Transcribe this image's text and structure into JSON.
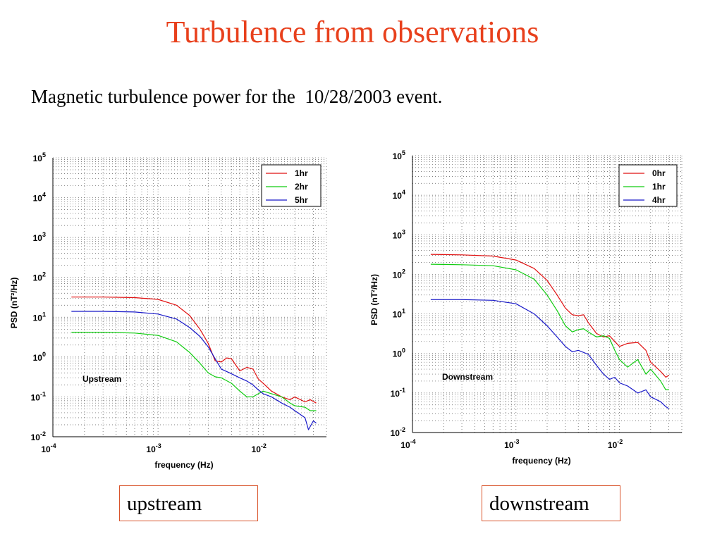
{
  "title": "Turbulence from observations",
  "subtitle": "Magnetic turbulence power for the  10/28/2003 event.",
  "captions": {
    "left": "upstream",
    "right": "downstream"
  },
  "chart_data": [
    {
      "type": "line",
      "xscale": "log",
      "yscale": "log",
      "xlim": [
        0.0001,
        0.04
      ],
      "ylim": [
        0.01,
        100000
      ],
      "xlabel": "frequency (Hz)",
      "ylabel": "PSD (nT²/Hz)",
      "xtick_exps": [
        "-4",
        "-3",
        "-2"
      ],
      "ytick_exps": [
        "5",
        "4",
        "3",
        "2",
        "1",
        "0",
        "-1",
        "-2"
      ],
      "annotation": "Upstream",
      "grid": true,
      "legend_position": "top-right",
      "series": [
        {
          "name": "1hr",
          "color": "#e01010",
          "x": [
            0.00015,
            0.0003,
            0.0006,
            0.001,
            0.0015,
            0.002,
            0.0025,
            0.003,
            0.0035,
            0.004,
            0.0045,
            0.005,
            0.006,
            0.007,
            0.008,
            0.009,
            0.01,
            0.012,
            0.015,
            0.018,
            0.02,
            0.025,
            0.028,
            0.032
          ],
          "y": [
            32,
            32,
            31,
            28,
            20,
            11,
            5,
            2.2,
            0.8,
            0.75,
            0.95,
            0.9,
            0.45,
            0.55,
            0.5,
            0.28,
            0.22,
            0.14,
            0.1,
            0.085,
            0.1,
            0.075,
            0.085,
            0.07
          ]
        },
        {
          "name": "2hr",
          "color": "#10cc10",
          "x": [
            0.00015,
            0.0003,
            0.0006,
            0.001,
            0.0015,
            0.002,
            0.0025,
            0.003,
            0.0035,
            0.004,
            0.005,
            0.006,
            0.007,
            0.008,
            0.009,
            0.01,
            0.012,
            0.015,
            0.018,
            0.02,
            0.025,
            0.028,
            0.032
          ],
          "y": [
            4.2,
            4.2,
            4.0,
            3.5,
            2.4,
            1.3,
            0.7,
            0.4,
            0.32,
            0.3,
            0.22,
            0.14,
            0.1,
            0.1,
            0.12,
            0.14,
            0.12,
            0.1,
            0.07,
            0.06,
            0.055,
            0.045,
            0.045
          ]
        },
        {
          "name": "5hr",
          "color": "#1818c8",
          "x": [
            0.00015,
            0.0003,
            0.0006,
            0.001,
            0.0015,
            0.002,
            0.0025,
            0.003,
            0.0035,
            0.004,
            0.005,
            0.006,
            0.007,
            0.008,
            0.009,
            0.01,
            0.012,
            0.015,
            0.018,
            0.02,
            0.025,
            0.027,
            0.03,
            0.032
          ],
          "y": [
            14,
            14,
            13.5,
            12,
            9,
            5.5,
            3.3,
            1.8,
            0.9,
            0.5,
            0.38,
            0.3,
            0.25,
            0.2,
            0.15,
            0.12,
            0.1,
            0.07,
            0.055,
            0.045,
            0.03,
            0.015,
            0.025,
            0.022
          ]
        }
      ]
    },
    {
      "type": "line",
      "xscale": "log",
      "yscale": "log",
      "xlim": [
        0.0001,
        0.04
      ],
      "ylim": [
        0.01,
        100000
      ],
      "xlabel": "frequency (Hz)",
      "ylabel": "PSD (nT²/Hz)",
      "xtick_exps": [
        "-4",
        "-3",
        "-2"
      ],
      "ytick_exps": [
        "5",
        "4",
        "3",
        "2",
        "1",
        "0",
        "-1",
        "-2"
      ],
      "annotation": "Downstream",
      "grid": true,
      "legend_position": "top-right",
      "series": [
        {
          "name": "0hr",
          "color": "#e01010",
          "x": [
            0.00015,
            0.0003,
            0.0006,
            0.001,
            0.0015,
            0.002,
            0.0025,
            0.003,
            0.0035,
            0.004,
            0.0045,
            0.005,
            0.006,
            0.007,
            0.008,
            0.009,
            0.01,
            0.012,
            0.015,
            0.018,
            0.02,
            0.025,
            0.028,
            0.03
          ],
          "y": [
            320,
            310,
            290,
            230,
            140,
            70,
            30,
            14,
            9.5,
            9,
            9.5,
            6,
            3.2,
            2.6,
            2.8,
            2.0,
            1.5,
            1.8,
            1.9,
            1.2,
            0.6,
            0.35,
            0.25,
            0.28
          ]
        },
        {
          "name": "1hr",
          "color": "#10cc10",
          "x": [
            0.00015,
            0.0003,
            0.0006,
            0.001,
            0.0015,
            0.002,
            0.0025,
            0.003,
            0.0035,
            0.004,
            0.0045,
            0.005,
            0.006,
            0.007,
            0.008,
            0.009,
            0.01,
            0.012,
            0.015,
            0.018,
            0.02,
            0.025,
            0.028,
            0.03
          ],
          "y": [
            180,
            175,
            165,
            130,
            75,
            30,
            12,
            5,
            3.5,
            4,
            4.2,
            3.5,
            2.6,
            2.8,
            2.4,
            1.2,
            0.7,
            0.45,
            0.7,
            0.3,
            0.4,
            0.2,
            0.12,
            0.12
          ]
        },
        {
          "name": "4hr",
          "color": "#1818c8",
          "x": [
            0.00015,
            0.0003,
            0.0006,
            0.001,
            0.0015,
            0.002,
            0.0025,
            0.003,
            0.0035,
            0.004,
            0.005,
            0.006,
            0.007,
            0.008,
            0.009,
            0.01,
            0.012,
            0.015,
            0.018,
            0.02,
            0.025,
            0.028,
            0.03
          ],
          "y": [
            23,
            23,
            22,
            18,
            10,
            5,
            2.6,
            1.5,
            1.1,
            1.2,
            0.95,
            0.5,
            0.3,
            0.22,
            0.25,
            0.18,
            0.15,
            0.1,
            0.12,
            0.08,
            0.06,
            0.045,
            0.04
          ]
        }
      ]
    }
  ]
}
